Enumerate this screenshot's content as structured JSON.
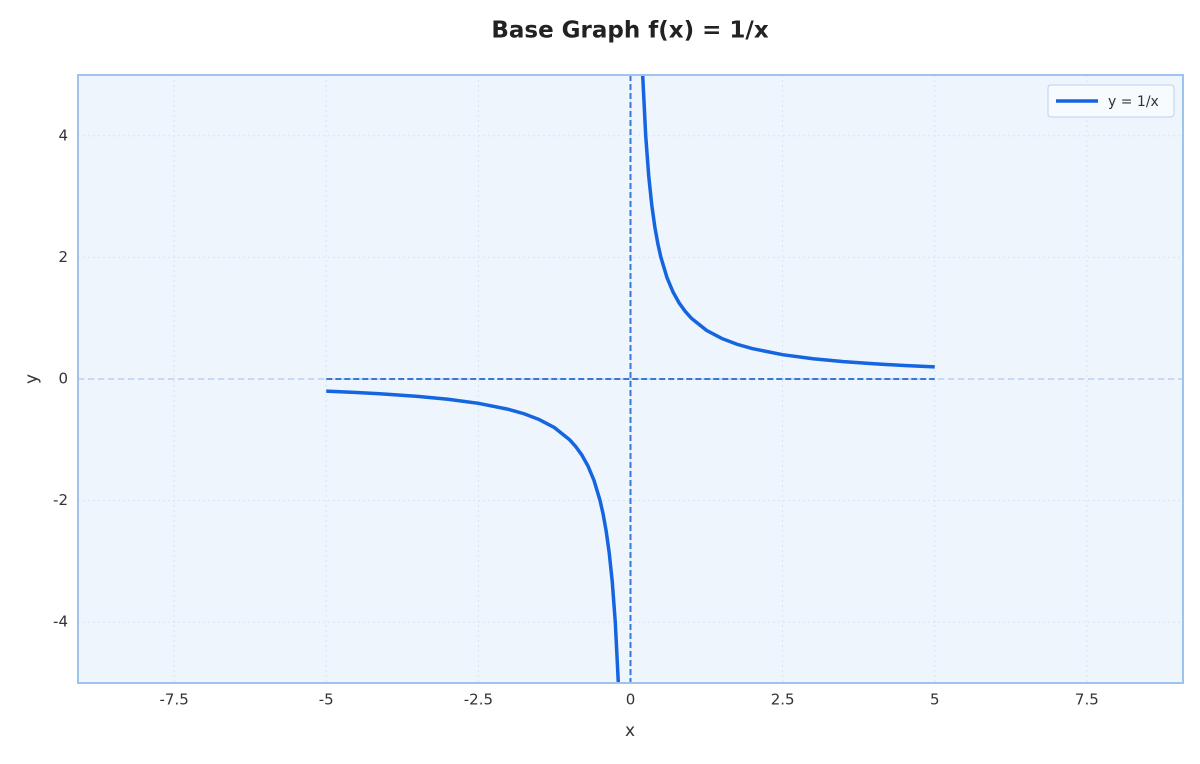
{
  "chart_data": {
    "type": "line",
    "title": "Base Graph f(x) = 1/x",
    "x_label": "x",
    "y_label": "y",
    "x": [
      -5,
      -4.5,
      -4,
      -3.5,
      -3,
      -2.5,
      -2,
      -1.75,
      -1.5,
      -1.25,
      -1,
      -0.9,
      -0.8,
      -0.7,
      -0.6,
      -0.5,
      -0.45,
      -0.4,
      -0.35,
      -0.3,
      -0.25,
      -0.2,
      0,
      0.2,
      0.25,
      0.3,
      0.35,
      0.4,
      0.45,
      0.5,
      0.6,
      0.7,
      0.8,
      0.9,
      1,
      1.25,
      1.5,
      1.75,
      2,
      2.5,
      3,
      3.5,
      4,
      4.5,
      5
    ],
    "series": [
      {
        "name": "y = 1/x",
        "color": "#1565e0",
        "values": [
          -0.2,
          -0.2222,
          -0.25,
          -0.2857,
          -0.3333,
          -0.4,
          -0.5,
          -0.5714,
          -0.6667,
          -0.8,
          -1,
          -1.1111,
          -1.25,
          -1.4286,
          -1.6667,
          -2,
          -2.2222,
          -2.5,
          -2.8571,
          -3.3333,
          -4,
          -5,
          null,
          5,
          4,
          3.3333,
          2.8571,
          2.5,
          2.2222,
          2,
          1.6667,
          1.4286,
          1.25,
          1.1111,
          1,
          0.8,
          0.6667,
          0.5714,
          0.5,
          0.4,
          0.3333,
          0.2857,
          0.25,
          0.2222,
          0.2
        ]
      }
    ],
    "asymptotes": {
      "vertical": 0,
      "horizontal": 0
    },
    "xlim": [
      -9.08,
      9.08
    ],
    "ylim": [
      -5,
      5
    ],
    "xticks": [
      -7.5,
      -5,
      -2.5,
      0,
      2.5,
      5,
      7.5
    ],
    "yticks": [
      -4,
      -2,
      0,
      2,
      4
    ],
    "grid": true,
    "legend": "upper right"
  }
}
